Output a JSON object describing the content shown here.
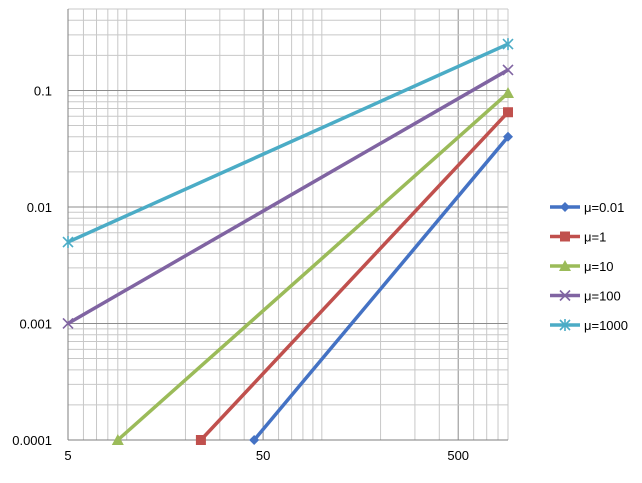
{
  "chart_data": {
    "type": "line",
    "x_scale": "log",
    "y_scale": "log",
    "xlim": [
      5,
      900
    ],
    "ylim": [
      0.0001,
      0.5
    ],
    "x_tick_labels": [
      {
        "value": 5,
        "label": "5"
      },
      {
        "value": 50,
        "label": "50"
      },
      {
        "value": 500,
        "label": "500"
      }
    ],
    "y_tick_labels": [
      {
        "value": 0.0001,
        "label": "0.0001"
      },
      {
        "value": 0.001,
        "label": "0.001"
      },
      {
        "value": 0.01,
        "label": "0.01"
      },
      {
        "value": 0.1,
        "label": "0.1"
      }
    ],
    "grid": true,
    "legend": "right",
    "series": [
      {
        "name": "μ=0.01",
        "color": "#4472C4",
        "marker": "diamond",
        "points": [
          [
            45,
            0.0001
          ],
          [
            900,
            0.04
          ]
        ]
      },
      {
        "name": "μ=1",
        "color": "#C0504D",
        "marker": "square",
        "points": [
          [
            24,
            0.0001
          ],
          [
            900,
            0.065
          ]
        ]
      },
      {
        "name": "μ=10",
        "color": "#9BBB59",
        "marker": "triangle",
        "points": [
          [
            9,
            0.0001
          ],
          [
            900,
            0.095
          ]
        ]
      },
      {
        "name": "μ=100",
        "color": "#8064A2",
        "marker": "x",
        "points": [
          [
            5,
            0.001
          ],
          [
            900,
            0.15
          ]
        ]
      },
      {
        "name": "μ=1000",
        "color": "#4BACC6",
        "marker": "star",
        "points": [
          [
            5,
            0.005
          ],
          [
            900,
            0.25
          ]
        ]
      }
    ]
  }
}
